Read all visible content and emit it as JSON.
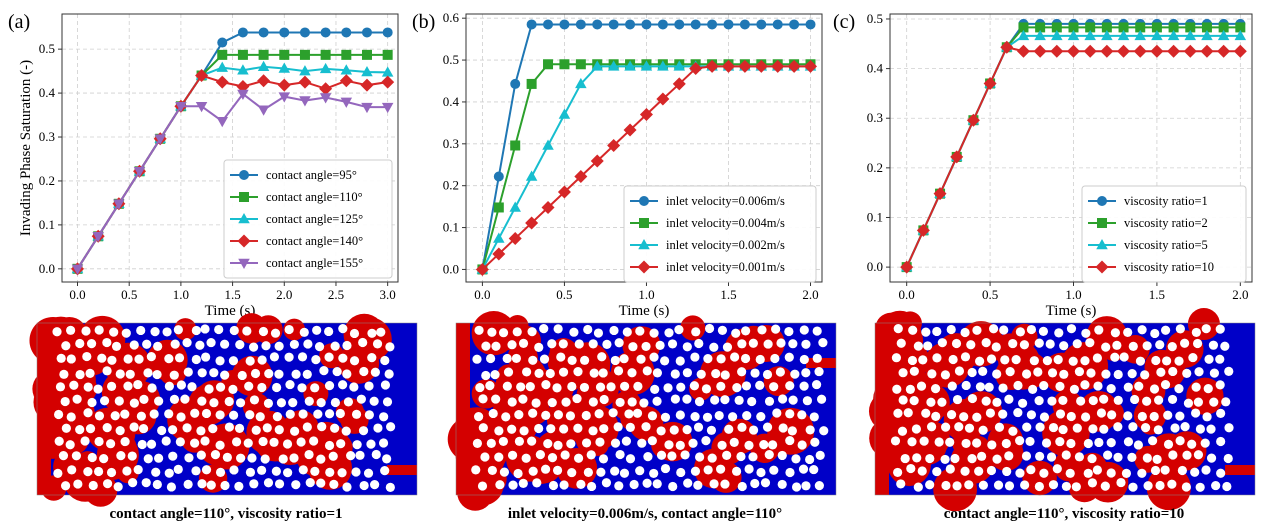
{
  "panels": [
    {
      "letter": "(a)"
    },
    {
      "letter": "(b)"
    },
    {
      "letter": "(c)"
    }
  ],
  "ylabel": "Invading Phase Saturation (-)",
  "captions": [
    "contact angle=110°, viscosity ratio=1",
    "inlet velocity=0.006m/s, contact angle=110°",
    "contact angle=110°, viscosity ratio=10"
  ],
  "colors": {
    "blue": "#1f77b4",
    "green": "#2ca02c",
    "cyan": "#17becf",
    "red": "#d62728",
    "purple": "#9467bd",
    "fluid_blue": "#0000c8",
    "fluid_red": "#d40000",
    "grain": "#ffffff"
  },
  "chart_data": [
    {
      "type": "line",
      "xlabel": "Time (s)",
      "ylabel": "Invading Phase Saturation (-)",
      "xlim": [
        -0.15,
        3.1
      ],
      "ylim": [
        -0.03,
        0.58
      ],
      "xticks": [
        "0.0",
        "0.5",
        "1.0",
        "1.5",
        "2.0",
        "2.5",
        "3.0"
      ],
      "yticks": [
        "0.0",
        "0.1",
        "0.2",
        "0.3",
        "0.4",
        "0.5"
      ],
      "grid": true,
      "legend_position": "lower-right",
      "x": [
        0,
        0.2,
        0.4,
        0.6,
        0.8,
        1.0,
        1.2,
        1.4,
        1.6,
        1.8,
        2.0,
        2.2,
        2.4,
        2.6,
        2.8,
        3.0
      ],
      "series": [
        {
          "name": "contact angle=95°",
          "color": "blue",
          "marker": "circle",
          "x": [
            0,
            0.2,
            0.4,
            0.6,
            0.8,
            1.0,
            1.2,
            1.4,
            1.6,
            1.8,
            2.0,
            2.2,
            2.4,
            2.6,
            2.8,
            3.0
          ],
          "values": [
            0,
            0.074,
            0.148,
            0.222,
            0.296,
            0.37,
            0.44,
            0.515,
            0.538,
            0.538,
            0.538,
            0.538,
            0.538,
            0.538,
            0.538,
            0.538
          ]
        },
        {
          "name": "contact angle=110°",
          "color": "green",
          "marker": "square",
          "x": [
            0,
            0.2,
            0.4,
            0.6,
            0.8,
            1.0,
            1.2,
            1.4,
            1.6,
            1.8,
            2.0,
            2.2,
            2.4,
            2.6,
            2.8,
            3.0
          ],
          "values": [
            0,
            0.074,
            0.148,
            0.222,
            0.296,
            0.37,
            0.44,
            0.487,
            0.487,
            0.487,
            0.487,
            0.487,
            0.487,
            0.487,
            0.487,
            0.487
          ]
        },
        {
          "name": "contact angle=125°",
          "color": "cyan",
          "marker": "triangle-up",
          "x": [
            0,
            0.2,
            0.4,
            0.6,
            0.8,
            1.0,
            1.2,
            1.4,
            1.6,
            1.8,
            2.0,
            2.2,
            2.4,
            2.6,
            2.8,
            3.0
          ],
          "values": [
            0,
            0.074,
            0.148,
            0.222,
            0.296,
            0.37,
            0.44,
            0.458,
            0.452,
            0.46,
            0.456,
            0.45,
            0.455,
            0.452,
            0.448,
            0.447
          ]
        },
        {
          "name": "contact angle=140°",
          "color": "red",
          "marker": "diamond",
          "x": [
            0,
            0.2,
            0.4,
            0.6,
            0.8,
            1.0,
            1.2,
            1.4,
            1.6,
            1.8,
            2.0,
            2.2,
            2.4,
            2.6,
            2.8,
            3.0
          ],
          "values": [
            0,
            0.074,
            0.148,
            0.222,
            0.296,
            0.37,
            0.44,
            0.425,
            0.415,
            0.428,
            0.418,
            0.425,
            0.41,
            0.428,
            0.418,
            0.425
          ]
        },
        {
          "name": "contact angle=155°",
          "color": "purple",
          "marker": "triangle-down",
          "x": [
            0,
            0.2,
            0.4,
            0.6,
            0.8,
            1.0,
            1.2,
            1.4,
            1.6,
            1.8,
            2.0,
            2.2,
            2.4,
            2.6,
            2.8,
            3.0
          ],
          "values": [
            0,
            0.074,
            0.148,
            0.222,
            0.296,
            0.37,
            0.37,
            0.336,
            0.398,
            0.362,
            0.392,
            0.383,
            0.39,
            0.38,
            0.368,
            0.368
          ]
        }
      ]
    },
    {
      "type": "line",
      "xlabel": "Time (s)",
      "xlim": [
        -0.1,
        2.07
      ],
      "ylim": [
        -0.03,
        0.61
      ],
      "xticks": [
        "0.0",
        "0.5",
        "1.0",
        "1.5",
        "2.0"
      ],
      "yticks": [
        "0.0",
        "0.1",
        "0.2",
        "0.3",
        "0.4",
        "0.5",
        "0.6"
      ],
      "grid": true,
      "legend_position": "lower-right",
      "series": [
        {
          "name": "inlet velocity=0.006m/s",
          "color": "blue",
          "marker": "circle",
          "x": [
            0,
            0.1,
            0.2,
            0.3,
            0.4,
            0.5,
            0.6,
            0.7,
            0.8,
            0.9,
            1.0,
            1.1,
            1.2,
            1.3,
            1.4,
            1.5,
            1.6,
            1.7,
            1.8,
            1.9,
            2.0
          ],
          "values": [
            0,
            0.222,
            0.443,
            0.585,
            0.585,
            0.585,
            0.585,
            0.585,
            0.585,
            0.585,
            0.585,
            0.585,
            0.585,
            0.585,
            0.585,
            0.585,
            0.585,
            0.585,
            0.585,
            0.585,
            0.585
          ]
        },
        {
          "name": "inlet velocity=0.004m/s",
          "color": "green",
          "marker": "square",
          "x": [
            0,
            0.1,
            0.2,
            0.3,
            0.4,
            0.5,
            0.6,
            0.7,
            0.8,
            0.9,
            1.0,
            1.1,
            1.2,
            1.3,
            1.4,
            1.5,
            1.6,
            1.7,
            1.8,
            1.9,
            2.0
          ],
          "values": [
            0,
            0.148,
            0.296,
            0.443,
            0.49,
            0.49,
            0.49,
            0.49,
            0.49,
            0.49,
            0.49,
            0.49,
            0.49,
            0.49,
            0.49,
            0.49,
            0.49,
            0.49,
            0.49,
            0.49,
            0.49
          ]
        },
        {
          "name": "inlet velocity=0.002m/s",
          "color": "cyan",
          "marker": "triangle-up",
          "x": [
            0,
            0.1,
            0.2,
            0.3,
            0.4,
            0.5,
            0.6,
            0.7,
            0.8,
            0.9,
            1.0,
            1.1,
            1.2,
            1.3,
            1.4,
            1.5,
            1.6,
            1.7,
            1.8,
            1.9,
            2.0
          ],
          "values": [
            0,
            0.074,
            0.148,
            0.222,
            0.296,
            0.37,
            0.443,
            0.485,
            0.485,
            0.485,
            0.485,
            0.485,
            0.485,
            0.485,
            0.485,
            0.485,
            0.485,
            0.485,
            0.485,
            0.485,
            0.485
          ]
        },
        {
          "name": "inlet velocity=0.001m/s",
          "color": "red",
          "marker": "diamond",
          "x": [
            0,
            0.1,
            0.2,
            0.3,
            0.4,
            0.5,
            0.6,
            0.7,
            0.8,
            0.9,
            1.0,
            1.1,
            1.2,
            1.3,
            1.4,
            1.5,
            1.6,
            1.7,
            1.8,
            1.9,
            2.0
          ],
          "values": [
            0,
            0.037,
            0.074,
            0.111,
            0.148,
            0.185,
            0.222,
            0.259,
            0.296,
            0.333,
            0.37,
            0.407,
            0.443,
            0.48,
            0.485,
            0.485,
            0.485,
            0.485,
            0.485,
            0.485,
            0.485
          ]
        }
      ]
    },
    {
      "type": "line",
      "xlabel": "Time (s)",
      "xlim": [
        -0.1,
        2.07
      ],
      "ylim": [
        -0.03,
        0.51
      ],
      "xticks": [
        "0.0",
        "0.5",
        "1.0",
        "1.5",
        "2.0"
      ],
      "yticks": [
        "0.0",
        "0.1",
        "0.2",
        "0.3",
        "0.4",
        "0.5"
      ],
      "grid": true,
      "legend_position": "lower-right",
      "series": [
        {
          "name": "viscosity ratio=1",
          "color": "blue",
          "marker": "circle",
          "x": [
            0,
            0.1,
            0.2,
            0.3,
            0.4,
            0.5,
            0.6,
            0.7,
            0.8,
            0.9,
            1.0,
            1.1,
            1.2,
            1.3,
            1.4,
            1.5,
            1.6,
            1.7,
            1.8,
            1.9,
            2.0
          ],
          "values": [
            0,
            0.074,
            0.148,
            0.222,
            0.296,
            0.37,
            0.443,
            0.49,
            0.49,
            0.49,
            0.49,
            0.49,
            0.49,
            0.49,
            0.49,
            0.49,
            0.49,
            0.49,
            0.49,
            0.49,
            0.49
          ]
        },
        {
          "name": "viscosity ratio=2",
          "color": "green",
          "marker": "square",
          "x": [
            0,
            0.1,
            0.2,
            0.3,
            0.4,
            0.5,
            0.6,
            0.7,
            0.8,
            0.9,
            1.0,
            1.1,
            1.2,
            1.3,
            1.4,
            1.5,
            1.6,
            1.7,
            1.8,
            1.9,
            2.0
          ],
          "values": [
            0,
            0.074,
            0.148,
            0.222,
            0.296,
            0.37,
            0.443,
            0.483,
            0.483,
            0.483,
            0.483,
            0.483,
            0.483,
            0.483,
            0.483,
            0.483,
            0.483,
            0.483,
            0.483,
            0.483,
            0.483
          ]
        },
        {
          "name": "viscosity ratio=5",
          "color": "cyan",
          "marker": "triangle-up",
          "x": [
            0,
            0.1,
            0.2,
            0.3,
            0.4,
            0.5,
            0.6,
            0.7,
            0.8,
            0.9,
            1.0,
            1.1,
            1.2,
            1.3,
            1.4,
            1.5,
            1.6,
            1.7,
            1.8,
            1.9,
            2.0
          ],
          "values": [
            0,
            0.074,
            0.148,
            0.222,
            0.296,
            0.37,
            0.443,
            0.466,
            0.466,
            0.466,
            0.466,
            0.466,
            0.466,
            0.466,
            0.466,
            0.466,
            0.466,
            0.466,
            0.466,
            0.466,
            0.466
          ]
        },
        {
          "name": "viscosity ratio=10",
          "color": "red",
          "marker": "diamond",
          "x": [
            0,
            0.1,
            0.2,
            0.3,
            0.4,
            0.5,
            0.6,
            0.7,
            0.8,
            0.9,
            1.0,
            1.1,
            1.2,
            1.3,
            1.4,
            1.5,
            1.6,
            1.7,
            1.8,
            1.9,
            2.0
          ],
          "values": [
            0,
            0.074,
            0.148,
            0.222,
            0.296,
            0.37,
            0.443,
            0.435,
            0.435,
            0.435,
            0.435,
            0.435,
            0.435,
            0.435,
            0.435,
            0.435,
            0.435,
            0.435,
            0.435,
            0.435,
            0.435
          ]
        }
      ]
    }
  ]
}
